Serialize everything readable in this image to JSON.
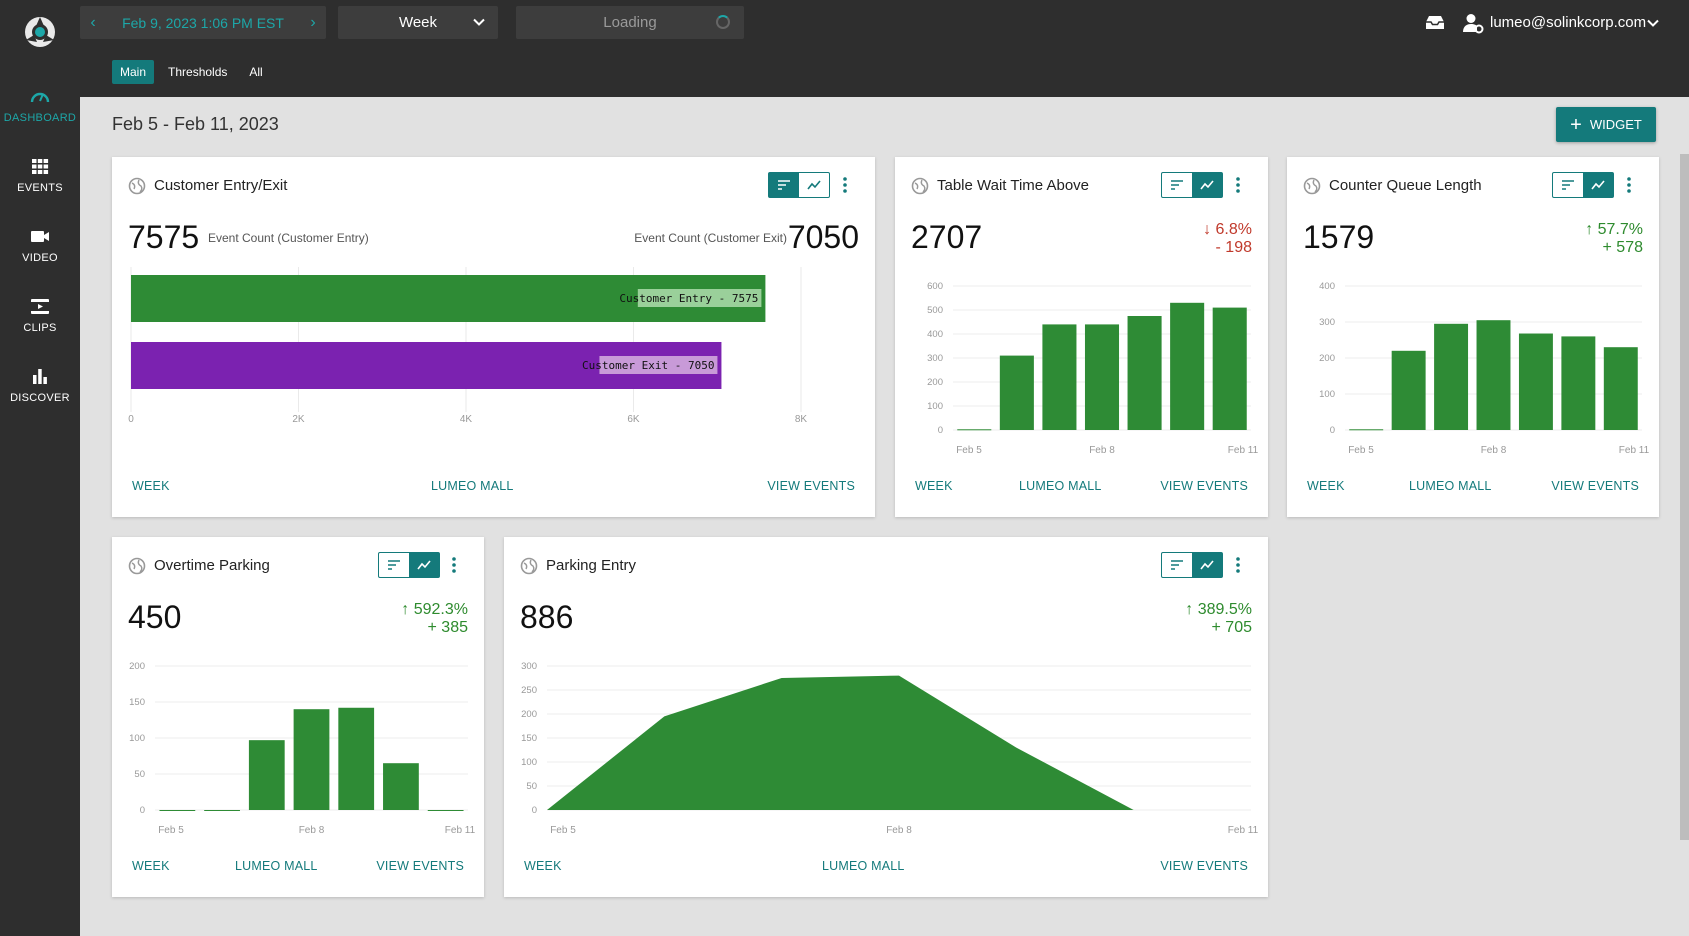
{
  "app": {
    "nav": [
      {
        "label": "DASHBOARD",
        "icon": "gauge-icon",
        "active": true
      },
      {
        "label": "EVENTS",
        "icon": "grid-icon"
      },
      {
        "label": "VIDEO",
        "icon": "video-camera-icon"
      },
      {
        "label": "CLIPS",
        "icon": "film-icon"
      },
      {
        "label": "DISCOVER",
        "icon": "bar-chart-icon"
      }
    ]
  },
  "header": {
    "date": "Feb 9, 2023 1:06 PM EST",
    "period": "Week",
    "loading": "Loading",
    "user_email": "lumeo@solinkcorp.com"
  },
  "tabs": [
    "Main",
    "Thresholds",
    "All"
  ],
  "range_title": "Feb 5 - Feb 11, 2023",
  "widget_button": "WIDGET",
  "colors": {
    "accent": "#147a7b",
    "bar_green": "#2e8b35",
    "bar_purple": "#7b22b0",
    "up": "#2e8b2e",
    "down": "#c0392b"
  },
  "cards": {
    "entry_exit": {
      "title": "Customer Entry/Exit",
      "value_left": "7575",
      "label_left": "Event Count (Customer Entry)",
      "value_right": "7050",
      "label_right": "Event Count (Customer Exit)",
      "footer": [
        "WEEK",
        "LUMEO MALL",
        "VIEW EVENTS"
      ]
    },
    "wait_time": {
      "title": "Table Wait Time Above",
      "value": "2707",
      "delta_pct": "↓ 6.8%",
      "delta_abs": "- 198",
      "footer": [
        "WEEK",
        "LUMEO MALL",
        "VIEW EVENTS"
      ]
    },
    "queue": {
      "title": "Counter Queue Length",
      "value": "1579",
      "delta_pct": "↑ 57.7%",
      "delta_abs": "+ 578",
      "footer": [
        "WEEK",
        "LUMEO MALL",
        "VIEW EVENTS"
      ]
    },
    "overtime": {
      "title": "Overtime Parking",
      "value": "450",
      "delta_pct": "↑ 592.3%",
      "delta_abs": "+ 385",
      "footer": [
        "WEEK",
        "LUMEO MALL",
        "VIEW EVENTS"
      ]
    },
    "parking": {
      "title": "Parking Entry",
      "value": "886",
      "delta_pct": "↑ 389.5%",
      "delta_abs": "+ 705",
      "footer": [
        "WEEK",
        "LUMEO MALL",
        "VIEW EVENTS"
      ]
    }
  },
  "chart_data": [
    {
      "id": "entry_exit",
      "type": "bar",
      "orientation": "horizontal",
      "categories": [
        "Customer Entry",
        "Customer Exit"
      ],
      "values": [
        7575,
        7050
      ],
      "data_labels": [
        "Customer Entry - 7575",
        "Customer Exit - 7050"
      ],
      "xlim": [
        0,
        8000
      ],
      "x_ticks": [
        "0",
        "2K",
        "4K",
        "6K",
        "8K"
      ],
      "colors": [
        "#2e8b35",
        "#7b22b0"
      ],
      "grid": true
    },
    {
      "id": "wait_time",
      "type": "bar",
      "x": [
        "Feb 5",
        "Feb 6",
        "Feb 7",
        "Feb 8",
        "Feb 9",
        "Feb 10",
        "Feb 11"
      ],
      "values": [
        3,
        310,
        440,
        440,
        475,
        530,
        510
      ],
      "x_tick_labels": [
        "Feb 5",
        "Feb 8",
        "Feb 11"
      ],
      "ylim": [
        0,
        600
      ],
      "y_ticks": [
        0,
        100,
        200,
        300,
        400,
        500,
        600
      ],
      "grid": true
    },
    {
      "id": "queue",
      "type": "bar",
      "x": [
        "Feb 5",
        "Feb 6",
        "Feb 7",
        "Feb 8",
        "Feb 9",
        "Feb 10",
        "Feb 11"
      ],
      "values": [
        2,
        220,
        295,
        305,
        268,
        260,
        230
      ],
      "x_tick_labels": [
        "Feb 5",
        "Feb 8",
        "Feb 11"
      ],
      "ylim": [
        0,
        400
      ],
      "y_ticks": [
        0,
        100,
        200,
        300,
        400
      ],
      "grid": true
    },
    {
      "id": "overtime",
      "type": "bar",
      "x": [
        "Feb 5",
        "Feb 6",
        "Feb 7",
        "Feb 8",
        "Feb 9",
        "Feb 10",
        "Feb 11"
      ],
      "values": [
        0,
        0,
        97,
        140,
        142,
        65,
        0
      ],
      "x_tick_labels": [
        "Feb 5",
        "Feb 8",
        "Feb 11"
      ],
      "ylim": [
        0,
        200
      ],
      "y_ticks": [
        0,
        50,
        100,
        150,
        200
      ],
      "grid": true
    },
    {
      "id": "parking",
      "type": "area",
      "x": [
        "Feb 5",
        "Feb 6",
        "Feb 7",
        "Feb 8",
        "Feb 9",
        "Feb 10",
        "Feb 11"
      ],
      "values": [
        0,
        195,
        275,
        280,
        130,
        0,
        0
      ],
      "x_tick_labels": [
        "Feb 5",
        "Feb 8",
        "Feb 11"
      ],
      "ylim": [
        0,
        300
      ],
      "y_ticks": [
        0,
        50,
        100,
        150,
        200,
        250,
        300
      ],
      "grid": true
    }
  ]
}
